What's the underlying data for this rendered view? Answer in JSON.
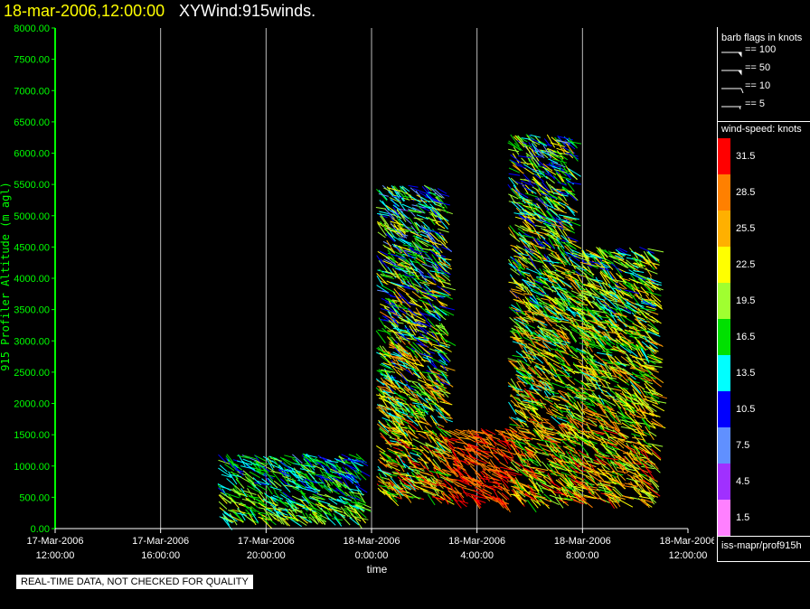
{
  "header": {
    "datetime": "18-mar-2006,12:00:00",
    "product": "XYWind:915winds."
  },
  "note": "REAL-TIME DATA, NOT CHECKED FOR QUALITY",
  "legend": {
    "barb_title": "barb flags in knots",
    "barb_flags": [
      {
        "label": "== 100",
        "icon": "pennant-barb-icon"
      },
      {
        "label": "== 50",
        "icon": "pennant-barb-icon"
      },
      {
        "label": "== 10",
        "icon": "full-barb-icon"
      },
      {
        "label": "== 5",
        "icon": "half-barb-icon"
      }
    ],
    "speed_title": "wind-speed: knots",
    "colorbar": [
      {
        "label": "31.5",
        "color": "#ff0000"
      },
      {
        "label": "28.5",
        "color": "#ff8000"
      },
      {
        "label": "25.5",
        "color": "#ffb000"
      },
      {
        "label": "22.5",
        "color": "#ffff00"
      },
      {
        "label": "19.5",
        "color": "#a0ff30"
      },
      {
        "label": "16.5",
        "color": "#00e000"
      },
      {
        "label": "13.5",
        "color": "#00ffff"
      },
      {
        "label": "10.5",
        "color": "#0000ff"
      },
      {
        "label": "7.5",
        "color": "#6090ff"
      },
      {
        "label": "4.5",
        "color": "#a030ff"
      },
      {
        "label": "1.5",
        "color": "#ff80ff"
      }
    ],
    "source": "iss-mapr/prof915h"
  },
  "chart_data": {
    "type": "scatter",
    "title": "XYWind:915winds.",
    "xlabel": "time",
    "ylabel": "915 Profiler Altitude (m agl)",
    "ylim": [
      0,
      8000
    ],
    "xlim": [
      "2006-03-17 12:00",
      "2006-03-18 12:00"
    ],
    "y_ticks": [
      "0.00",
      "500.00",
      "1000.00",
      "1500.00",
      "2000.00",
      "2500.00",
      "3000.00",
      "3500.00",
      "4000.00",
      "4500.00",
      "5000.00",
      "5500.00",
      "6000.00",
      "6500.00",
      "7000.00",
      "7500.00",
      "8000.00"
    ],
    "x_ticks": [
      {
        "date": "17-Mar-2006",
        "time": "12:00:00"
      },
      {
        "date": "17-Mar-2006",
        "time": "16:00:00"
      },
      {
        "date": "17-Mar-2006",
        "time": "20:00:00"
      },
      {
        "date": "18-Mar-2006",
        "time": "0:00:00"
      },
      {
        "date": "18-Mar-2006",
        "time": "4:00:00"
      },
      {
        "date": "18-Mar-2006",
        "time": "8:00:00"
      },
      {
        "date": "18-Mar-2006",
        "time": "12:00:00"
      }
    ],
    "grid": "vertical",
    "units": "knots",
    "series": [
      {
        "x": [
          "2006-03-17 18:10",
          "2006-03-17 23:30"
        ],
        "y": [
          150,
          1200
        ],
        "speed_knots": [
          8,
          24
        ]
      },
      {
        "x": [
          "2006-03-18 00:10",
          "2006-03-18 02:40"
        ],
        "y": [
          500,
          5500
        ],
        "speed_knots": [
          5,
          33
        ]
      },
      {
        "x": [
          "2006-03-18 02:40",
          "2006-03-18 05:10"
        ],
        "y": [
          450,
          1600
        ],
        "speed_knots": [
          26,
          33
        ]
      },
      {
        "x": [
          "2006-03-18 05:10",
          "2006-03-18 07:30"
        ],
        "y": [
          450,
          6300
        ],
        "speed_knots": [
          7,
          33
        ]
      },
      {
        "x": [
          "2006-03-18 07:30",
          "2006-03-18 10:40"
        ],
        "y": [
          450,
          4500
        ],
        "speed_knots": [
          10,
          33
        ]
      }
    ]
  }
}
